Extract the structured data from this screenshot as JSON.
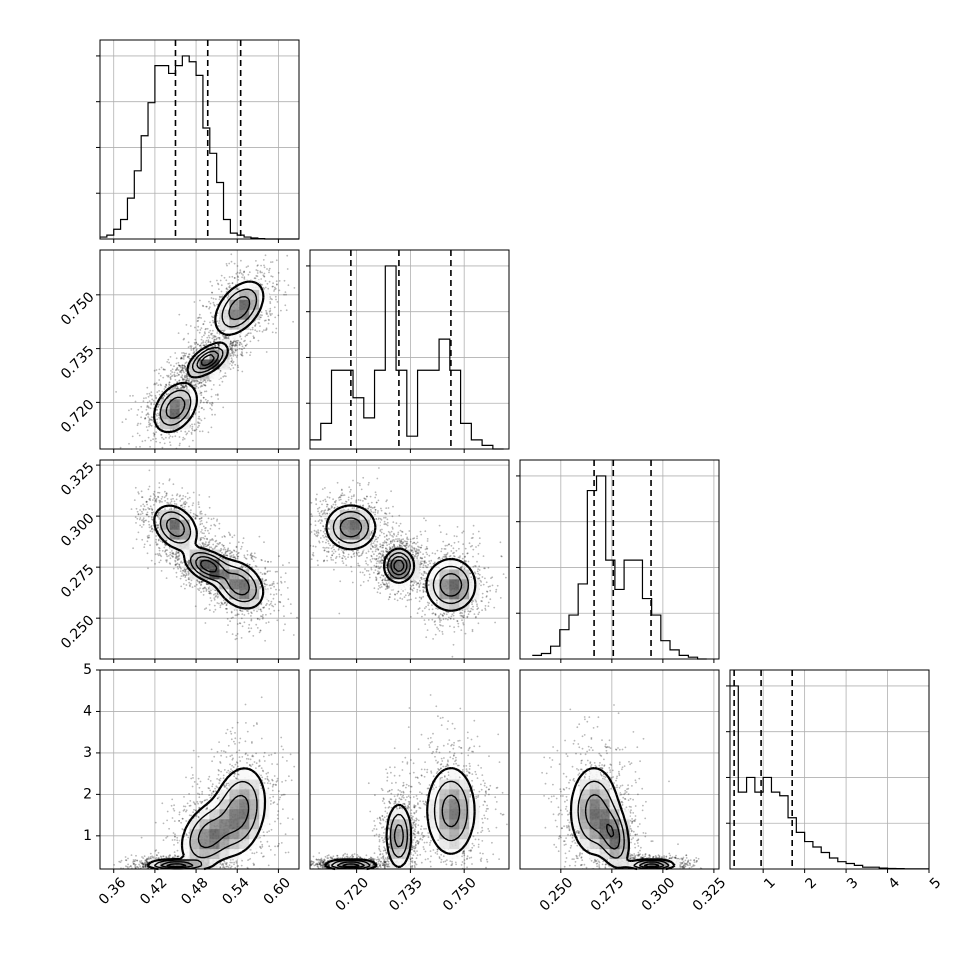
{
  "chart_data": {
    "type": "corner",
    "grid": true,
    "parameters": [
      {
        "id": "p0",
        "range": [
          0.34,
          0.63
        ],
        "ticks": [
          0.36,
          0.42,
          0.48,
          0.54,
          0.6
        ],
        "tick_labels": [
          "0.36",
          "0.42",
          "0.48",
          "0.54",
          "0.60"
        ],
        "quantiles": [
          0.45,
          0.497,
          0.545
        ],
        "hist": {
          "edges": [
            0.34,
            0.35,
            0.36,
            0.37,
            0.38,
            0.39,
            0.4,
            0.41,
            0.42,
            0.43,
            0.44,
            0.45,
            0.46,
            0.47,
            0.48,
            0.49,
            0.5,
            0.51,
            0.52,
            0.53,
            0.54,
            0.55,
            0.56,
            0.57,
            0.58,
            0.59,
            0.6,
            0.61,
            0.62,
            0.63
          ],
          "counts": [
            0.01,
            0.02,
            0.05,
            0.1,
            0.21,
            0.35,
            0.53,
            0.7,
            0.89,
            0.89,
            0.85,
            0.89,
            0.94,
            0.91,
            0.84,
            0.57,
            0.44,
            0.29,
            0.1,
            0.03,
            0.02,
            0.01,
            0.005,
            0.002,
            0,
            0,
            0,
            0,
            0
          ]
        }
      },
      {
        "id": "p1",
        "range": [
          0.707,
          0.7625
        ],
        "ticks": [
          0.72,
          0.735,
          0.75
        ],
        "tick_labels": [
          "0.720",
          "0.735",
          "0.750"
        ],
        "quantiles": [
          0.7184,
          0.7318,
          0.7463
        ],
        "hist": {
          "edges": [
            0.707,
            0.71,
            0.713,
            0.716,
            0.719,
            0.722,
            0.725,
            0.728,
            0.731,
            0.734,
            0.737,
            0.74,
            0.743,
            0.746,
            0.749,
            0.752,
            0.755,
            0.758,
            0.761
          ],
          "counts": [
            0.05,
            0.14,
            0.43,
            0.43,
            0.28,
            0.17,
            0.43,
            1.0,
            0.43,
            0.07,
            0.43,
            0.43,
            0.6,
            0.43,
            0.14,
            0.05,
            0.02,
            0
          ]
        }
      },
      {
        "id": "p2",
        "range": [
          0.23,
          0.3275
        ],
        "ticks": [
          0.25,
          0.275,
          0.3,
          0.325
        ],
        "tick_labels": [
          "0.250",
          "0.275",
          "0.300",
          "0.325"
        ],
        "quantiles": [
          0.2663,
          0.2757,
          0.2942
        ],
        "hist": {
          "edges": [
            0.236,
            0.2405,
            0.245,
            0.2495,
            0.254,
            0.2585,
            0.263,
            0.2675,
            0.272,
            0.2765,
            0.281,
            0.2855,
            0.29,
            0.2945,
            0.299,
            0.3035,
            0.308,
            0.3125,
            0.317,
            0.3215
          ],
          "counts": [
            0.02,
            0.03,
            0.07,
            0.16,
            0.24,
            0.41,
            0.92,
            1.0,
            0.54,
            0.38,
            0.54,
            0.54,
            0.33,
            0.24,
            0.1,
            0.05,
            0.02,
            0.01,
            0
          ]
        }
      },
      {
        "id": "p3",
        "range": [
          0.2,
          5.0
        ],
        "ticks": [
          1,
          2,
          3,
          4,
          5
        ],
        "tick_labels": [
          "1",
          "2",
          "3",
          "4",
          "5"
        ],
        "y_ticks": [
          1,
          2,
          3,
          4,
          5
        ],
        "y_tick_labels": [
          "1",
          "2",
          "3",
          "4",
          "5"
        ],
        "quantiles": [
          0.3,
          0.95,
          1.7
        ],
        "hist": {
          "edges": [
            0.2,
            0.4,
            0.6,
            0.8,
            1.0,
            1.2,
            1.4,
            1.6,
            1.8,
            2.0,
            2.2,
            2.4,
            2.6,
            2.8,
            3.0,
            3.2,
            3.4,
            3.6,
            3.8,
            4.0,
            4.2,
            4.4,
            5.0
          ],
          "counts": [
            1.0,
            0.42,
            0.5,
            0.42,
            0.5,
            0.42,
            0.4,
            0.28,
            0.2,
            0.15,
            0.12,
            0.09,
            0.06,
            0.04,
            0.03,
            0.02,
            0.01,
            0.01,
            0.005,
            0.003,
            0.002,
            0.001
          ]
        }
      }
    ],
    "pair_densities": [
      {
        "row": 1,
        "col": 0,
        "modes": [
          {
            "x": 0.45,
            "y": 0.7185,
            "sx": 0.016,
            "sy": 0.0035,
            "rho": 0.35,
            "w": 1
          },
          {
            "x": 0.497,
            "y": 0.7318,
            "sx": 0.014,
            "sy": 0.0022,
            "rho": 0.55,
            "w": 1.3
          },
          {
            "x": 0.543,
            "y": 0.7463,
            "sx": 0.018,
            "sy": 0.0038,
            "rho": 0.45,
            "w": 1
          }
        ]
      },
      {
        "row": 2,
        "col": 0,
        "modes": [
          {
            "x": 0.45,
            "y": 0.2945,
            "sx": 0.016,
            "sy": 0.0055,
            "rho": -0.3,
            "w": 1
          },
          {
            "x": 0.497,
            "y": 0.2757,
            "sx": 0.016,
            "sy": 0.004,
            "rho": -0.4,
            "w": 1.3
          },
          {
            "x": 0.543,
            "y": 0.2663,
            "sx": 0.018,
            "sy": 0.006,
            "rho": -0.3,
            "w": 1
          }
        ]
      },
      {
        "row": 2,
        "col": 1,
        "modes": [
          {
            "x": 0.7184,
            "y": 0.2945,
            "sx": 0.0035,
            "sy": 0.0055,
            "rho": 0.0,
            "w": 1
          },
          {
            "x": 0.7318,
            "y": 0.2757,
            "sx": 0.002,
            "sy": 0.004,
            "rho": 0.0,
            "w": 1.3
          },
          {
            "x": 0.7463,
            "y": 0.2663,
            "sx": 0.0035,
            "sy": 0.0065,
            "rho": 0.0,
            "w": 1
          }
        ]
      },
      {
        "row": 3,
        "col": 0,
        "modes": [
          {
            "x": 0.45,
            "y": 0.3,
            "sx": 0.02,
            "sy": 0.06,
            "rho": 0.0,
            "w": 1.2
          },
          {
            "x": 0.497,
            "y": 1.0,
            "sx": 0.02,
            "sy": 0.4,
            "rho": 0.3,
            "w": 0.8
          },
          {
            "x": 0.543,
            "y": 1.6,
            "sx": 0.02,
            "sy": 0.55,
            "rho": 0.2,
            "w": 0.8
          }
        ]
      },
      {
        "row": 3,
        "col": 1,
        "modes": [
          {
            "x": 0.7184,
            "y": 0.3,
            "sx": 0.0035,
            "sy": 0.06,
            "rho": 0.0,
            "w": 1.2
          },
          {
            "x": 0.7318,
            "y": 1.0,
            "sx": 0.0018,
            "sy": 0.4,
            "rho": 0.0,
            "w": 0.8
          },
          {
            "x": 0.7463,
            "y": 1.6,
            "sx": 0.0035,
            "sy": 0.55,
            "rho": 0.0,
            "w": 0.8
          }
        ]
      },
      {
        "row": 3,
        "col": 2,
        "modes": [
          {
            "x": 0.2945,
            "y": 0.3,
            "sx": 0.0055,
            "sy": 0.06,
            "rho": 0.0,
            "w": 1.2
          },
          {
            "x": 0.2757,
            "y": 1.0,
            "sx": 0.004,
            "sy": 0.4,
            "rho": -0.3,
            "w": 0.8
          },
          {
            "x": 0.2663,
            "y": 1.6,
            "sx": 0.006,
            "sy": 0.55,
            "rho": 0.0,
            "w": 0.8
          }
        ]
      }
    ]
  }
}
